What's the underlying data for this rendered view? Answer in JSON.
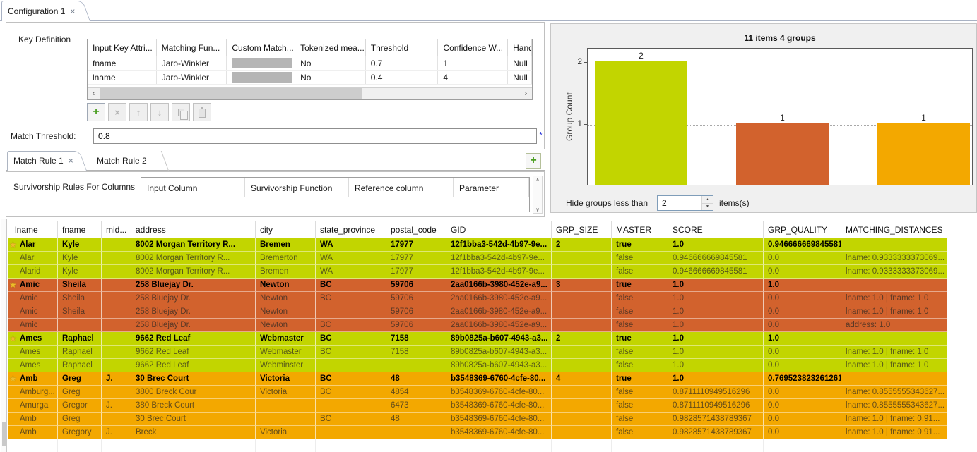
{
  "editor_tab": {
    "title": "Configuration 1"
  },
  "icons": {
    "close": "×",
    "add": "+",
    "delete": "×",
    "move_up": "↑",
    "move_down": "↓",
    "copy": "copy-pages",
    "paste": "clipboard",
    "master_star": "★",
    "scroll_left": "‹",
    "scroll_right": "›",
    "scroll_up": "∧",
    "scroll_down": "∨",
    "spin_up": "▲",
    "spin_down": "▼"
  },
  "colors": {
    "group_green": "#c2d500",
    "group_terracotta": "#d2622d",
    "group_orange": "#f3a800",
    "add_button_green": "#4a9e21",
    "required_asterisk": "#2b36d9"
  },
  "key_definition": {
    "label": "Key Definition",
    "columns": [
      "Input Key Attri...",
      "Matching Fun...",
      "Custom Match...",
      "Tokenized mea...",
      "Threshold",
      "Confidence W...",
      "Hand"
    ],
    "rows": [
      {
        "input_key": "fname",
        "matching_function": "Jaro-Winkler",
        "tokenized": "No",
        "threshold": "0.7",
        "confidence_weight": "1",
        "handle": "Null"
      },
      {
        "input_key": "lname",
        "matching_function": "Jaro-Winkler",
        "tokenized": "No",
        "threshold": "0.4",
        "confidence_weight": "4",
        "handle": "Null"
      }
    ]
  },
  "match_threshold": {
    "label": "Match Threshold:",
    "value": "0.8",
    "required_marker": "*"
  },
  "rule_tabs": {
    "tabs": [
      {
        "label": "Match Rule 1"
      },
      {
        "label": "Match Rule 2"
      }
    ],
    "active_index": 0
  },
  "survivorship": {
    "label": "Survivorship Rules For Columns",
    "columns": [
      "Input Column",
      "Survivorship Function",
      "Reference column",
      "Parameter"
    ]
  },
  "chart_data": {
    "type": "bar",
    "title": "11 items 4 groups",
    "ylabel": "Group Count",
    "categories": [
      "",
      "",
      ""
    ],
    "values": [
      2,
      1,
      1
    ],
    "bar_colors": [
      "#c2d500",
      "#d2622d",
      "#f3a800"
    ],
    "value_labels": [
      "2",
      "1",
      "1"
    ],
    "yticks": [
      1,
      2
    ],
    "ylim": [
      0,
      2.23
    ],
    "grid": "dotted-horizontal",
    "legend": "none"
  },
  "hide_groups": {
    "label": "Hide groups less than",
    "value": "2",
    "suffix": "items(s)"
  },
  "table": {
    "columns": [
      "lname",
      "fname",
      "mid...",
      "address",
      "city",
      "state_province",
      "postal_code",
      "GID",
      "GRP_SIZE",
      "MASTER",
      "SCORE",
      "GRP_QUALITY",
      "MATCHING_DISTANCES"
    ],
    "groups": [
      {
        "color": "#c2d500",
        "rows": [
          {
            "is_master_row": true,
            "lname": "Alar",
            "fname": "Kyle",
            "mid": "",
            "address": "8002 Morgan Territory R...",
            "city": "Bremen",
            "state_province": "WA",
            "postal_code": "17977",
            "gid": "12f1bba3-542d-4b97-9e...",
            "grp_size": "2",
            "master": "true",
            "score": "1.0",
            "grp_quality": "0.946666669845581",
            "matching_distances": ""
          },
          {
            "is_master_row": false,
            "lname": "Alar",
            "fname": "Kyle",
            "mid": "",
            "address": "8002 Morgan Territory R...",
            "city": "Bremerton",
            "state_province": "WA",
            "postal_code": "17977",
            "gid": "12f1bba3-542d-4b97-9e...",
            "grp_size": "",
            "master": "false",
            "score": "0.946666669845581",
            "grp_quality": "0.0",
            "matching_distances": "lname: 0.9333333373069..."
          },
          {
            "is_master_row": false,
            "lname": "Alarid",
            "fname": "Kyle",
            "mid": "",
            "address": "8002 Morgan Territory R...",
            "city": "Bremen",
            "state_province": "WA",
            "postal_code": "17977",
            "gid": "12f1bba3-542d-4b97-9e...",
            "grp_size": "",
            "master": "false",
            "score": "0.946666669845581",
            "grp_quality": "0.0",
            "matching_distances": "lname: 0.9333333373069..."
          }
        ]
      },
      {
        "color": "#d2622d",
        "rows": [
          {
            "is_master_row": true,
            "lname": "Amic",
            "fname": "Sheila",
            "mid": "",
            "address": "258 Bluejay Dr.",
            "city": "Newton",
            "state_province": "BC",
            "postal_code": "59706",
            "gid": "2aa0166b-3980-452e-a9...",
            "grp_size": "3",
            "master": "true",
            "score": "1.0",
            "grp_quality": "1.0",
            "matching_distances": ""
          },
          {
            "is_master_row": false,
            "lname": "Amic",
            "fname": "Sheila",
            "mid": "",
            "address": "258 Bluejay Dr.",
            "city": "Newton",
            "state_province": "BC",
            "postal_code": "59706",
            "gid": "2aa0166b-3980-452e-a9...",
            "grp_size": "",
            "master": "false",
            "score": "1.0",
            "grp_quality": "0.0",
            "matching_distances": "lname: 1.0 | fname: 1.0"
          },
          {
            "is_master_row": false,
            "lname": "Amic",
            "fname": "Sheila",
            "mid": "",
            "address": "258 Bluejay Dr.",
            "city": "Newton",
            "state_province": "",
            "postal_code": "59706",
            "gid": "2aa0166b-3980-452e-a9...",
            "grp_size": "",
            "master": "false",
            "score": "1.0",
            "grp_quality": "0.0",
            "matching_distances": "lname: 1.0 | fname: 1.0"
          },
          {
            "is_master_row": false,
            "lname": "Amic",
            "fname": "",
            "mid": "",
            "address": "258 Bluejay Dr.",
            "city": "Newton",
            "state_province": "BC",
            "postal_code": "59706",
            "gid": "2aa0166b-3980-452e-a9...",
            "grp_size": "",
            "master": "false",
            "score": "1.0",
            "grp_quality": "0.0",
            "matching_distances": "address: 1.0"
          }
        ]
      },
      {
        "color": "#c2d500",
        "rows": [
          {
            "is_master_row": true,
            "lname": "Ames",
            "fname": "Raphael",
            "mid": "",
            "address": "9662 Red Leaf",
            "city": "Webmaster",
            "state_province": "BC",
            "postal_code": "7158",
            "gid": "89b0825a-b607-4943-a3...",
            "grp_size": "2",
            "master": "true",
            "score": "1.0",
            "grp_quality": "1.0",
            "matching_distances": ""
          },
          {
            "is_master_row": false,
            "lname": "Ames",
            "fname": "Raphael",
            "mid": "",
            "address": "9662 Red Leaf",
            "city": "Webmaster",
            "state_province": "BC",
            "postal_code": "7158",
            "gid": "89b0825a-b607-4943-a3...",
            "grp_size": "",
            "master": "false",
            "score": "1.0",
            "grp_quality": "0.0",
            "matching_distances": "lname: 1.0 | fname: 1.0"
          },
          {
            "is_master_row": false,
            "lname": "Ames",
            "fname": "Raphael",
            "mid": "",
            "address": "9662 Red Leaf",
            "city": "Webminster",
            "state_province": "",
            "postal_code": "",
            "gid": "89b0825a-b607-4943-a3...",
            "grp_size": "",
            "master": "false",
            "score": "1.0",
            "grp_quality": "0.0",
            "matching_distances": "lname: 1.0 | fname: 1.0"
          }
        ]
      },
      {
        "color": "#f3a800",
        "rows": [
          {
            "is_master_row": true,
            "lname": "Amb",
            "fname": "Greg",
            "mid": "J.",
            "address": "30 Brec Court",
            "city": "Victoria",
            "state_province": "BC",
            "postal_code": "48",
            "gid": "b3548369-6760-4cfe-80...",
            "grp_size": "4",
            "master": "true",
            "score": "1.0",
            "grp_quality": "0.769523823261261",
            "matching_distances": ""
          },
          {
            "is_master_row": false,
            "lname": "Amburg...",
            "fname": "Greg",
            "mid": "",
            "address": "3800 Breck Cour",
            "city": "Victoria",
            "state_province": "BC",
            "postal_code": "4854",
            "gid": "b3548369-6760-4cfe-80...",
            "grp_size": "",
            "master": "false",
            "score": "0.8711110949516296",
            "grp_quality": "0.0",
            "matching_distances": "lname: 0.8555555343627..."
          },
          {
            "is_master_row": false,
            "lname": "Amurga",
            "fname": "Gregor",
            "mid": "J.",
            "address": "380 Breck Court",
            "city": "",
            "state_province": "",
            "postal_code": "6473",
            "gid": "b3548369-6760-4cfe-80...",
            "grp_size": "",
            "master": "false",
            "score": "0.8711110949516296",
            "grp_quality": "0.0",
            "matching_distances": "lname: 0.8555555343627..."
          },
          {
            "is_master_row": false,
            "lname": "Amb",
            "fname": "Greg",
            "mid": "",
            "address": "30 Brec Court",
            "city": "",
            "state_province": "BC",
            "postal_code": "48",
            "gid": "b3548369-6760-4cfe-80...",
            "grp_size": "",
            "master": "false",
            "score": "0.9828571438789367",
            "grp_quality": "0.0",
            "matching_distances": "lname: 1.0 | fname: 0.91..."
          },
          {
            "is_master_row": false,
            "lname": "Amb",
            "fname": "Gregory",
            "mid": "J.",
            "address": "Breck",
            "city": "Victoria",
            "state_province": "",
            "postal_code": "",
            "gid": "b3548369-6760-4cfe-80...",
            "grp_size": "",
            "master": "false",
            "score": "0.9828571438789367",
            "grp_quality": "0.0",
            "matching_distances": "lname: 1.0 | fname: 0.91..."
          }
        ]
      }
    ]
  }
}
